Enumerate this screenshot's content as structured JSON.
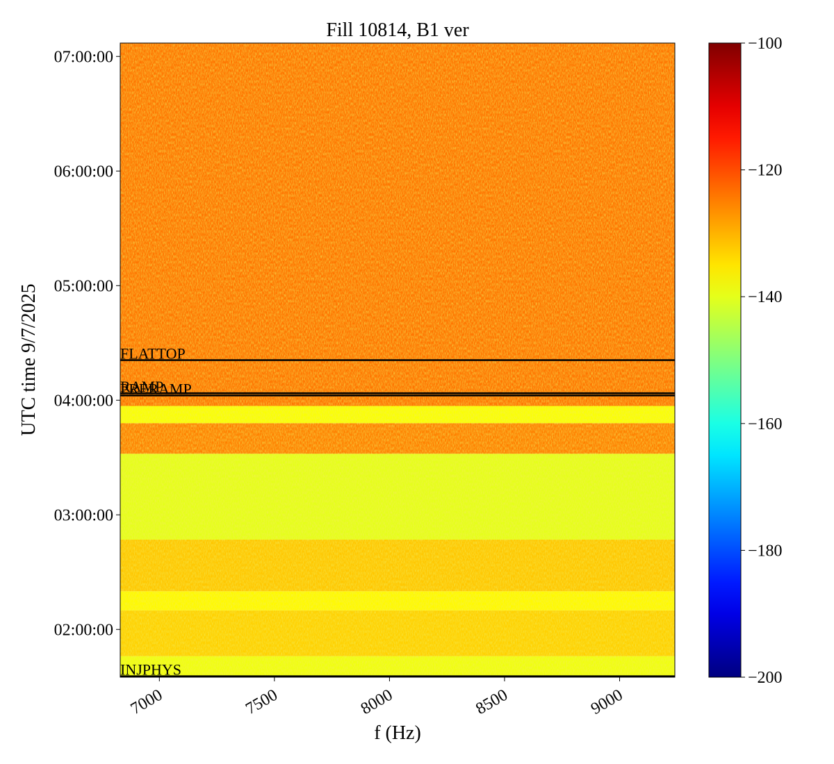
{
  "chart_data": {
    "type": "spectrogram",
    "title": "Fill 10814, B1 ver",
    "xlabel": "f (Hz)",
    "ylabel": "UTC time 9/7/2025",
    "xlim": [
      6830,
      9240
    ],
    "xticks": [
      7000,
      7500,
      8000,
      8500,
      9000
    ],
    "ylim": [
      "01:35:00",
      "07:07:00"
    ],
    "yticks": [
      "02:00:00",
      "03:00:00",
      "04:00:00",
      "05:00:00",
      "06:00:00",
      "07:00:00"
    ],
    "colormap": "jet",
    "clim": [
      -200,
      -100
    ],
    "cticks": [
      -100,
      -120,
      -140,
      -160,
      -180,
      -200
    ],
    "bands": [
      {
        "start": "01:35:00",
        "end": "01:46:00",
        "level": -139
      },
      {
        "start": "01:46:00",
        "end": "02:10:00",
        "level": -133
      },
      {
        "start": "02:10:00",
        "end": "02:20:00",
        "level": -137
      },
      {
        "start": "02:20:00",
        "end": "02:47:00",
        "level": -132
      },
      {
        "start": "02:47:00",
        "end": "03:32:00",
        "level": -140
      },
      {
        "start": "03:32:00",
        "end": "03:48:00",
        "level": -125
      },
      {
        "start": "03:48:00",
        "end": "03:57:00",
        "level": -138
      },
      {
        "start": "03:57:00",
        "end": "07:07:00",
        "level": -124
      }
    ],
    "events": [
      {
        "time": "01:35:30",
        "label": "INJPHYS"
      },
      {
        "time": "04:02:30",
        "label": "PRERAMP"
      },
      {
        "time": "04:03:40",
        "label": "RAMP"
      },
      {
        "time": "04:21:00",
        "label": "FLATTOP"
      }
    ]
  }
}
